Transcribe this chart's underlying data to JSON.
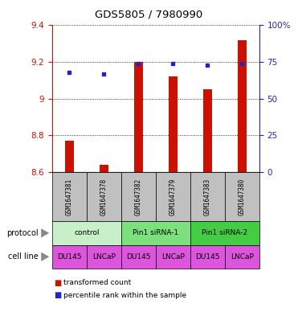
{
  "title": "GDS5805 / 7980990",
  "samples": [
    "GSM1647381",
    "GSM1647378",
    "GSM1647382",
    "GSM1647379",
    "GSM1647383",
    "GSM1647380"
  ],
  "red_values": [
    8.77,
    8.64,
    9.2,
    9.12,
    9.05,
    9.32
  ],
  "red_base": 8.6,
  "blue_values": [
    68,
    67,
    74,
    74,
    73,
    74
  ],
  "ylim_left": [
    8.6,
    9.4
  ],
  "yticks_left": [
    8.6,
    8.8,
    9.0,
    9.2,
    9.4
  ],
  "ytick_labels_left": [
    "8.6",
    "8.8",
    "9",
    "9.2",
    "9.4"
  ],
  "yticks_right": [
    0,
    25,
    50,
    75,
    100
  ],
  "ytick_labels_right": [
    "0",
    "25",
    "50",
    "75",
    "100%"
  ],
  "protocol_groups": [
    {
      "label": "control",
      "cols": [
        0,
        1
      ],
      "color": "#c8f0c8"
    },
    {
      "label": "Pin1 siRNA-1",
      "cols": [
        2,
        3
      ],
      "color": "#7ce07c"
    },
    {
      "label": "Pin1 siRNA-2",
      "cols": [
        4,
        5
      ],
      "color": "#44cc44"
    }
  ],
  "cell_lines": [
    "DU145",
    "LNCaP",
    "DU145",
    "LNCaP",
    "DU145",
    "LNCaP"
  ],
  "cell_line_color": "#dd55dd",
  "bar_color": "#cc1100",
  "dot_color": "#2222cc",
  "label_row_bg": "#c0c0c0",
  "bar_width": 0.25,
  "protocol_label": "protocol",
  "cellline_label": "cell line"
}
